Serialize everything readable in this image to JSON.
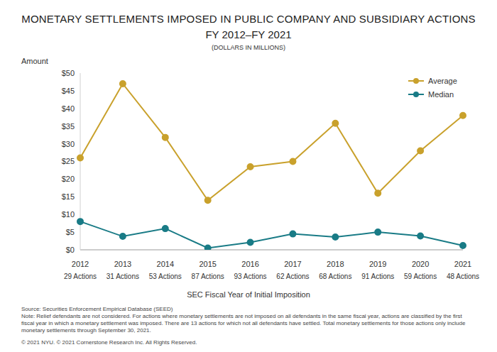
{
  "chart_data": {
    "type": "line",
    "title": "MONETARY SETTLEMENTS IMPOSED IN PUBLIC COMPANY AND SUBSIDIARY ACTIONS",
    "subtitle": "FY 2012–FY 2021",
    "unit_label": "(DOLLARS IN MILLIONS)",
    "y_label": "Amount",
    "x_label": "SEC Fiscal Year of Initial Imposition",
    "categories": [
      "2012",
      "2013",
      "2014",
      "2015",
      "2016",
      "2017",
      "2018",
      "2019",
      "2020",
      "2021"
    ],
    "category_sublabels": [
      "29 Actions",
      "31 Actions",
      "53 Actions",
      "87 Actions",
      "93 Actions",
      "62 Actions",
      "68 Actions",
      "91 Actions",
      "59 Actions",
      "48 Actions"
    ],
    "series": [
      {
        "name": "Average",
        "color": "#c9a12c",
        "marker": "circle",
        "values": [
          26,
          47,
          31.8,
          14,
          23.5,
          25,
          35.8,
          16,
          28,
          38
        ]
      },
      {
        "name": "Median",
        "color": "#197b86",
        "marker": "circle",
        "values": [
          8,
          3.8,
          6,
          0.5,
          2.1,
          4.5,
          3.6,
          5,
          3.9,
          1.2
        ]
      }
    ],
    "ylim": [
      0,
      50
    ],
    "yticks": [
      {
        "value": 0,
        "label": "$0"
      },
      {
        "value": 5,
        "label": "$5"
      },
      {
        "value": 10,
        "label": "$10"
      },
      {
        "value": 15,
        "label": "$15"
      },
      {
        "value": 20,
        "label": "$20"
      },
      {
        "value": 25,
        "label": "$25"
      },
      {
        "value": 30,
        "label": "$30"
      },
      {
        "value": 35,
        "label": "$35"
      },
      {
        "value": 40,
        "label": "$40"
      },
      {
        "value": 45,
        "label": "$45"
      },
      {
        "value": 50,
        "label": "$50"
      }
    ],
    "grid": false,
    "legend": "upper right",
    "source": "Source: Securities Enforcement Empirical Database (SEED)",
    "note": "Note: Relief defendants are not considered. For actions where monetary settlements are not imposed on all defendants in the same fiscal year, actions are classified by the first fiscal year in which a monetary settlement was imposed. There are 13 actions for which not all defendants have settled. Total monetary settlements for those actions only include monetary settlements through September 30, 2021.",
    "copyright": "© 2021 NYU. © 2021 Cornerstone Research Inc. All Rights Reserved."
  }
}
